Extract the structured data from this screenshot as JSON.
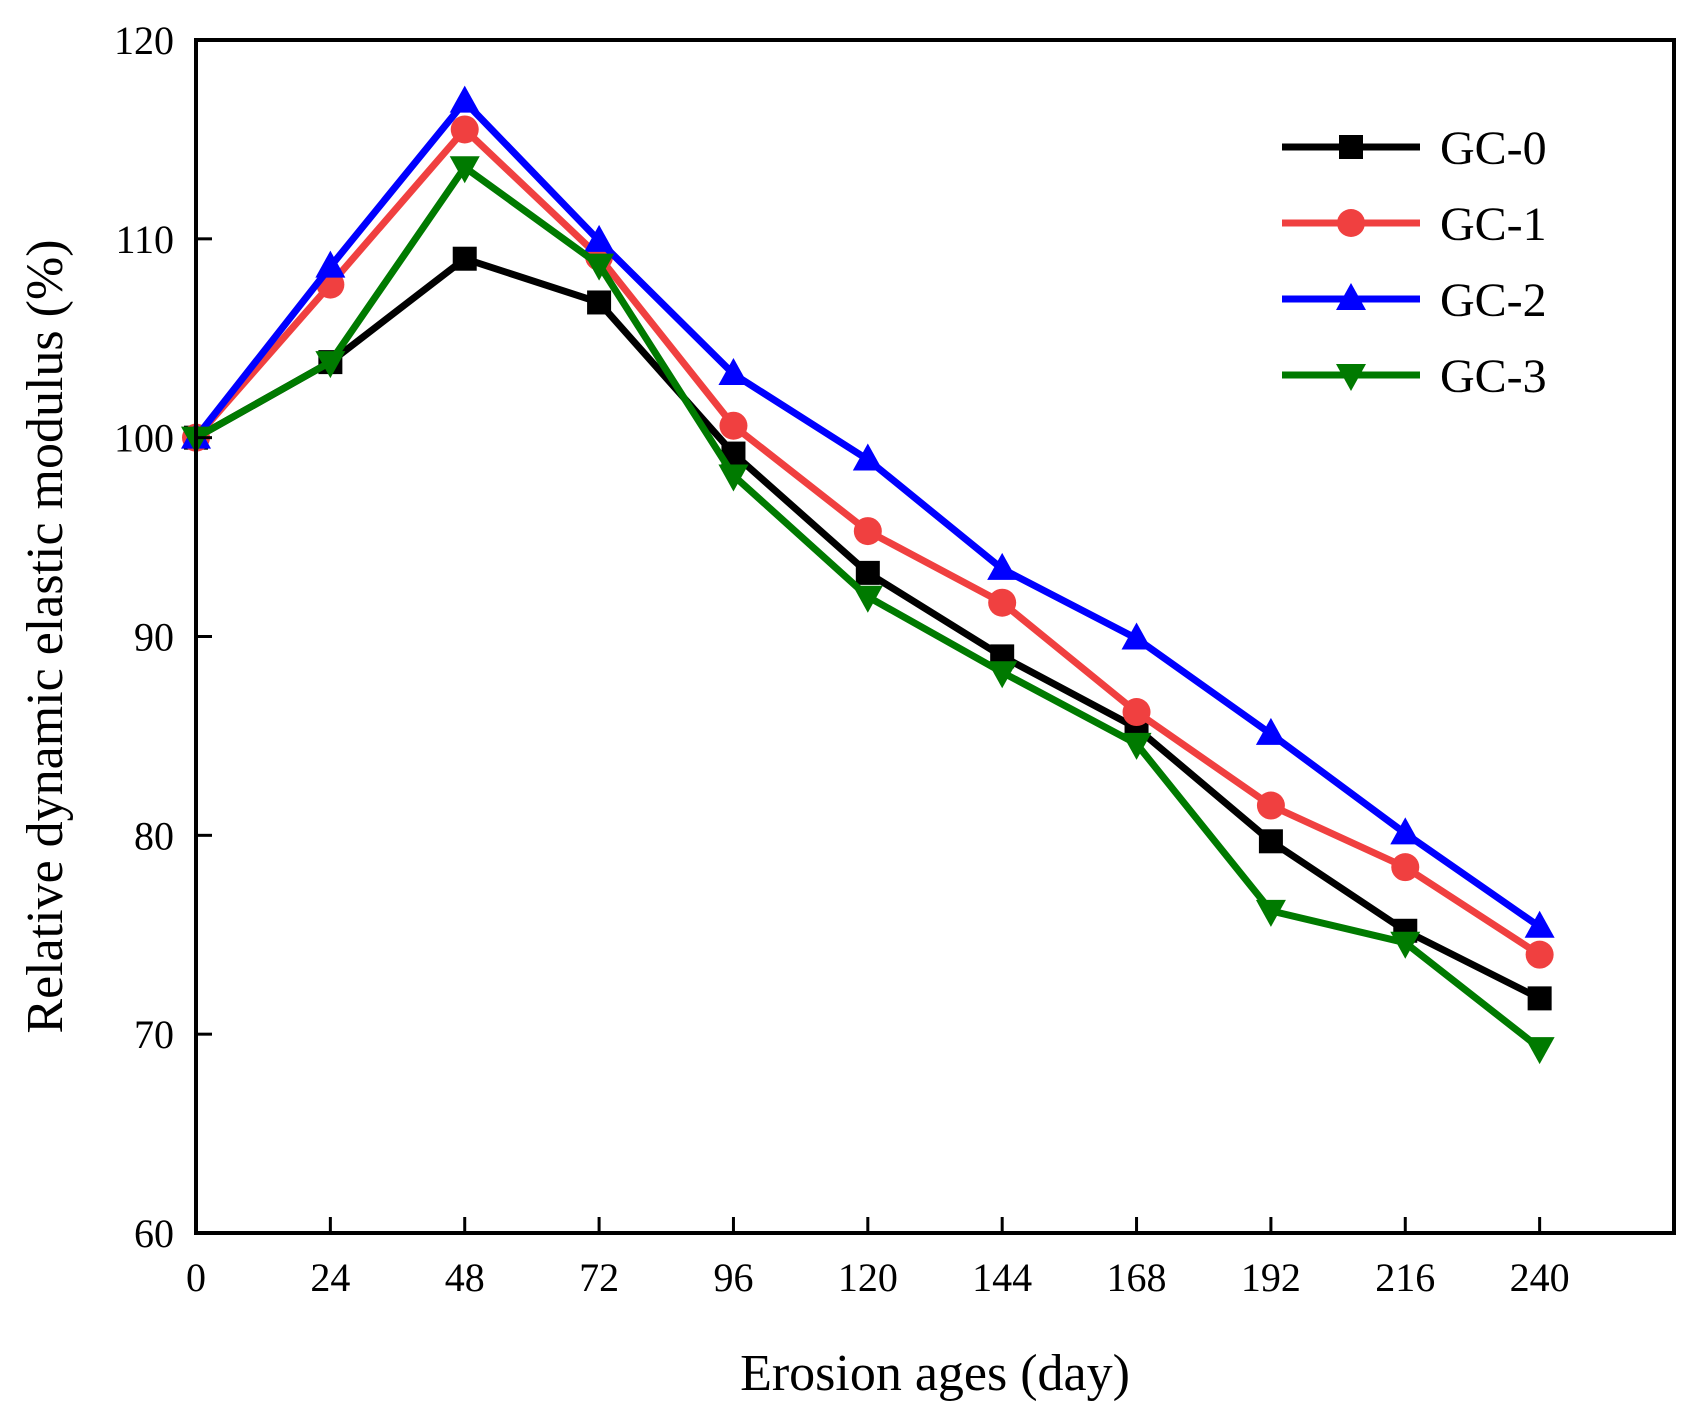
{
  "chart_data": {
    "type": "line",
    "xlabel": "Erosion ages (day)",
    "ylabel": "Relative dynamic elastic modulus (%)",
    "xlim": [
      0,
      264
    ],
    "ylim": [
      60,
      120
    ],
    "xticks": [
      0,
      24,
      48,
      72,
      96,
      120,
      144,
      168,
      192,
      216,
      240
    ],
    "yticks": [
      60,
      70,
      80,
      90,
      100,
      110,
      120
    ],
    "grid": false,
    "legend_position": "top-right",
    "x": [
      0,
      24,
      48,
      72,
      96,
      120,
      144,
      168,
      192,
      216,
      240
    ],
    "series": [
      {
        "name": "GC-0",
        "color": "#000000",
        "marker": "square",
        "values": [
          100.0,
          103.8,
          109.0,
          106.8,
          99.2,
          93.2,
          89.0,
          85.4,
          79.7,
          75.2,
          71.8
        ]
      },
      {
        "name": "GC-1",
        "color": "#f04040",
        "marker": "circle",
        "values": [
          100.0,
          107.7,
          115.5,
          109.1,
          100.6,
          95.3,
          91.7,
          86.2,
          81.5,
          78.4,
          74.0
        ]
      },
      {
        "name": "GC-2",
        "color": "#0000ff",
        "marker": "triangle-up",
        "values": [
          100.0,
          108.6,
          116.9,
          109.9,
          103.2,
          98.9,
          93.4,
          89.9,
          85.1,
          80.1,
          75.4
        ]
      },
      {
        "name": "GC-3",
        "color": "#007a00",
        "marker": "triangle-down",
        "values": [
          100.0,
          103.8,
          113.6,
          108.7,
          98.1,
          92.0,
          88.2,
          84.6,
          76.2,
          74.6,
          69.3
        ]
      }
    ]
  }
}
